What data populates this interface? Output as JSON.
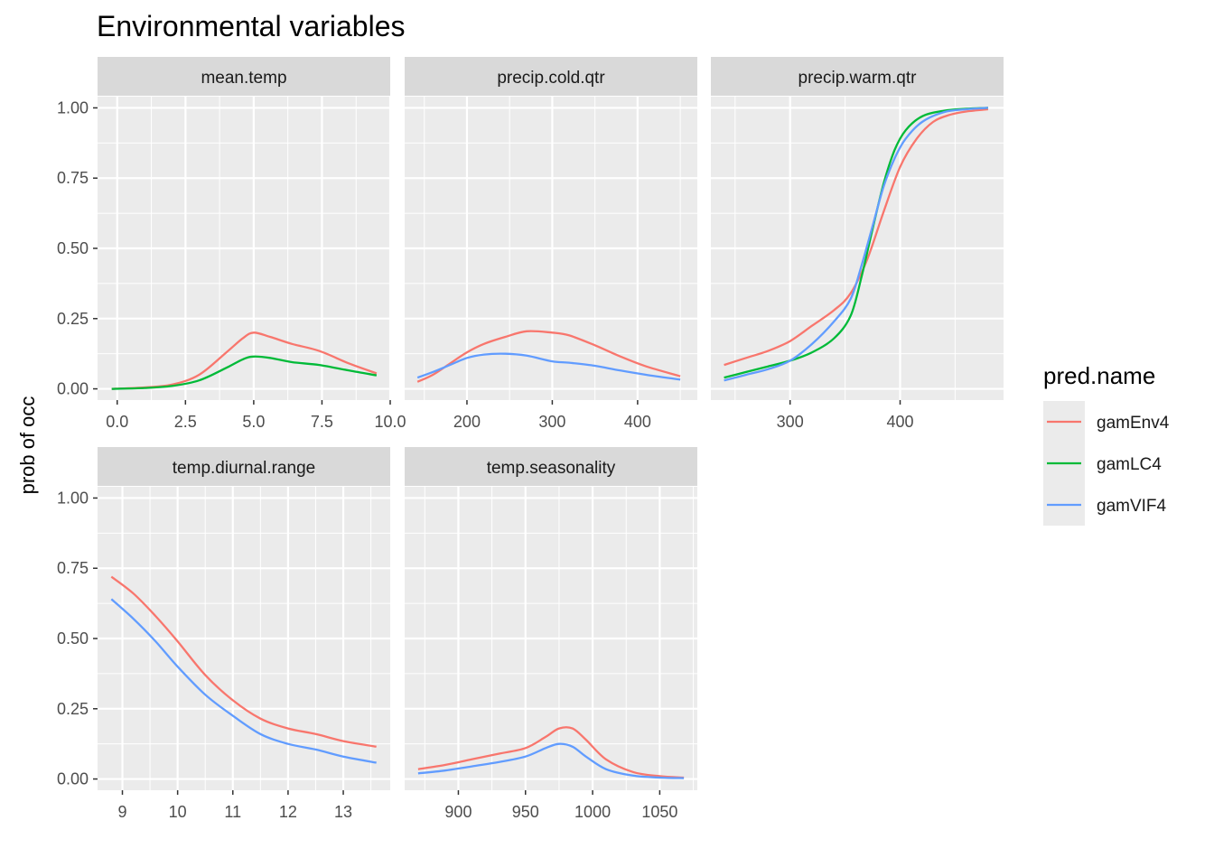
{
  "title": "Environmental variables",
  "ylabel": "prob of occ",
  "legend": {
    "title": "pred.name",
    "placement": "right",
    "items": [
      {
        "label": "gamEnv4",
        "color": "#F8766D"
      },
      {
        "label": "gamLC4",
        "color": "#00BA38"
      },
      {
        "label": "gamVIF4",
        "color": "#619CFF"
      }
    ]
  },
  "chart_data": {
    "type": "line",
    "title": "Environmental variables",
    "ylabel": "prob of occ",
    "ylim": [
      -0.04,
      1.04
    ],
    "yticks": [
      0.0,
      0.25,
      0.5,
      0.75,
      1.0
    ],
    "ytick_labels": [
      "0.00",
      "0.25",
      "0.50",
      "0.75",
      "1.00"
    ],
    "grid": true,
    "legend_placement": "right",
    "panels": [
      {
        "strip": "mean.temp",
        "xlim": [
          -0.72,
          10.0
        ],
        "xticks": [
          0,
          2.5,
          5,
          7.5,
          10
        ],
        "xtick_labels": [
          "0.0",
          "2.5",
          "5.0",
          "7.5",
          "10.0"
        ],
        "series": [
          {
            "name": "gamEnv4",
            "x": [
              -0.2,
              1.0,
              2.0,
              3.0,
              4.0,
              4.6,
              5.0,
              5.6,
              6.4,
              7.4,
              8.5,
              9.5
            ],
            "y": [
              0.0,
              0.005,
              0.015,
              0.05,
              0.13,
              0.18,
              0.2,
              0.185,
              0.16,
              0.135,
              0.09,
              0.055
            ]
          },
          {
            "name": "gamLC4",
            "x": [
              -0.2,
              1.0,
              2.0,
              3.0,
              4.0,
              4.6,
              5.0,
              5.6,
              6.4,
              7.4,
              8.5,
              9.5
            ],
            "y": [
              0.0,
              0.003,
              0.01,
              0.03,
              0.075,
              0.105,
              0.115,
              0.11,
              0.095,
              0.085,
              0.065,
              0.048
            ]
          }
        ]
      },
      {
        "strip": "precip.cold.qtr",
        "xlim": [
          127,
          470
        ],
        "xticks": [
          200,
          300,
          400
        ],
        "xtick_labels": [
          "200",
          "300",
          "400"
        ],
        "series": [
          {
            "name": "gamEnv4",
            "x": [
              142,
              160,
              180,
              200,
              220,
              245,
              270,
              300,
              320,
              350,
              380,
              410,
              450
            ],
            "y": [
              0.025,
              0.05,
              0.09,
              0.13,
              0.16,
              0.185,
              0.205,
              0.2,
              0.19,
              0.155,
              0.115,
              0.08,
              0.045
            ]
          },
          {
            "name": "gamVIF4",
            "x": [
              142,
              160,
              180,
              200,
              220,
              245,
              270,
              300,
              320,
              350,
              380,
              410,
              450
            ],
            "y": [
              0.04,
              0.06,
              0.085,
              0.11,
              0.122,
              0.125,
              0.118,
              0.098,
              0.093,
              0.082,
              0.065,
              0.05,
              0.033
            ]
          }
        ]
      },
      {
        "strip": "precip.warm.qtr",
        "xlim": [
          228,
          494
        ],
        "xticks": [
          300,
          400
        ],
        "xtick_labels": [
          "300",
          "400"
        ],
        "series": [
          {
            "name": "gamEnv4",
            "x": [
              240,
              260,
              280,
              300,
              320,
              340,
              355,
              370,
              385,
              400,
              415,
              430,
              445,
              460,
              480
            ],
            "y": [
              0.085,
              0.11,
              0.135,
              0.17,
              0.225,
              0.28,
              0.34,
              0.46,
              0.63,
              0.79,
              0.89,
              0.95,
              0.975,
              0.987,
              0.995
            ]
          },
          {
            "name": "gamLC4",
            "x": [
              240,
              260,
              280,
              300,
              320,
              340,
              355,
              365,
              375,
              385,
              395,
              405,
              420,
              440,
              460,
              480
            ],
            "y": [
              0.04,
              0.06,
              0.08,
              0.1,
              0.13,
              0.18,
              0.26,
              0.4,
              0.57,
              0.73,
              0.85,
              0.92,
              0.97,
              0.99,
              0.997,
              1.0
            ]
          },
          {
            "name": "gamVIF4",
            "x": [
              240,
              260,
              280,
              300,
              320,
              340,
              355,
              365,
              375,
              385,
              395,
              405,
              420,
              440,
              460,
              480
            ],
            "y": [
              0.03,
              0.05,
              0.07,
              0.1,
              0.16,
              0.24,
              0.32,
              0.44,
              0.58,
              0.72,
              0.82,
              0.89,
              0.95,
              0.985,
              0.995,
              1.0
            ]
          }
        ]
      },
      {
        "strip": "temp.diurnal.range",
        "xlim": [
          8.55,
          13.85
        ],
        "xticks": [
          9,
          10,
          11,
          12,
          13
        ],
        "xtick_labels": [
          "9",
          "10",
          "11",
          "12",
          "13"
        ],
        "series": [
          {
            "name": "gamEnv4",
            "x": [
              8.8,
              9.2,
              9.6,
              10.0,
              10.5,
              11.0,
              11.5,
              12.0,
              12.5,
              13.0,
              13.6
            ],
            "y": [
              0.72,
              0.66,
              0.58,
              0.49,
              0.37,
              0.28,
              0.215,
              0.18,
              0.16,
              0.135,
              0.115
            ]
          },
          {
            "name": "gamVIF4",
            "x": [
              8.8,
              9.2,
              9.6,
              10.0,
              10.5,
              11.0,
              11.5,
              12.0,
              12.5,
              13.0,
              13.6
            ],
            "y": [
              0.64,
              0.57,
              0.49,
              0.4,
              0.3,
              0.225,
              0.16,
              0.125,
              0.105,
              0.08,
              0.058
            ]
          }
        ]
      },
      {
        "strip": "temp.seasonality",
        "xlim": [
          860,
          1078
        ],
        "xticks": [
          900,
          950,
          1000,
          1050
        ],
        "xtick_labels": [
          "900",
          "950",
          "1000",
          "1050"
        ],
        "series": [
          {
            "name": "gamEnv4",
            "x": [
              870,
              890,
              910,
              930,
              950,
              965,
              975,
              985,
              995,
              1010,
              1030,
              1050,
              1068
            ],
            "y": [
              0.035,
              0.05,
              0.07,
              0.09,
              0.11,
              0.15,
              0.18,
              0.18,
              0.14,
              0.07,
              0.025,
              0.01,
              0.005
            ]
          },
          {
            "name": "gamVIF4",
            "x": [
              870,
              890,
              910,
              930,
              950,
              965,
              975,
              985,
              995,
              1010,
              1030,
              1050,
              1068
            ],
            "y": [
              0.02,
              0.03,
              0.045,
              0.06,
              0.08,
              0.11,
              0.125,
              0.115,
              0.08,
              0.035,
              0.012,
              0.005,
              0.003
            ]
          }
        ]
      }
    ]
  }
}
